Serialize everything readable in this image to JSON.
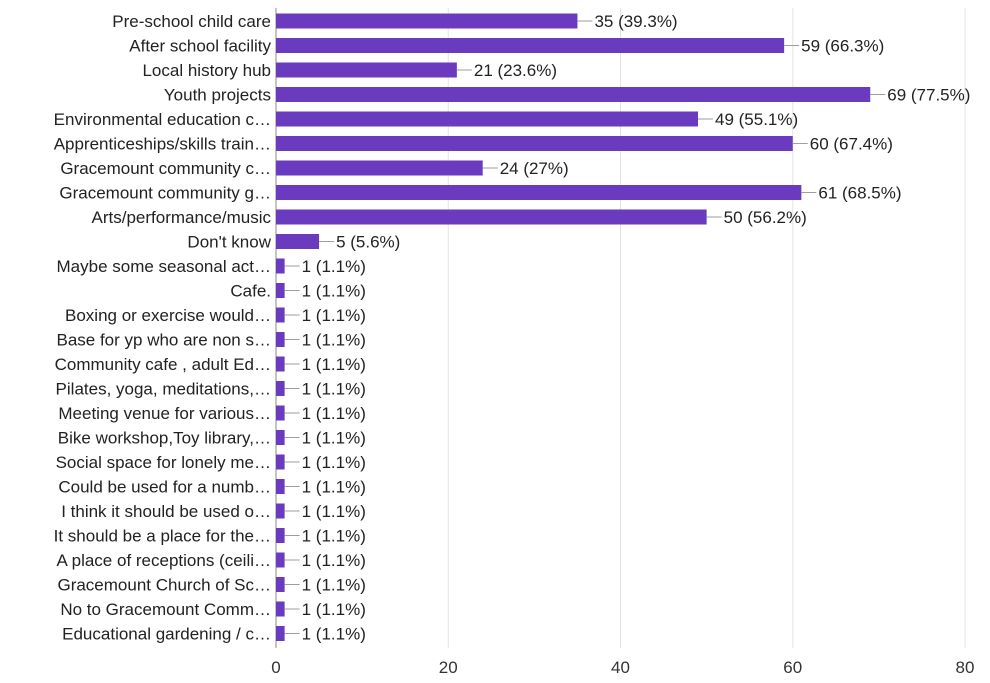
{
  "colors": {
    "bar": "#6a3bbf",
    "grid": "#e3e3e3",
    "axis": "#9e9e9e",
    "leader": "#9e9e9e",
    "text": "#222222"
  },
  "chart_data": {
    "type": "bar",
    "orientation": "horizontal",
    "title": "",
    "xlabel": "",
    "ylabel": "",
    "xlim": [
      0,
      80
    ],
    "xticks": [
      0,
      20,
      40,
      60,
      80
    ],
    "grid": true,
    "categories": [
      "Pre-school child care",
      "After school facility",
      "Local history hub",
      "Youth projects",
      "Environmental education c…",
      "Apprenticeships/skills train…",
      "Gracemount community c…",
      "Gracemount community g…",
      "Arts/performance/music",
      "Don't know",
      "Maybe some seasonal act…",
      "Cafe.",
      "Boxing or exercise would…",
      "Base for yp who are non s…",
      "Community cafe , adult Ed…",
      "Pilates, yoga, meditations,…",
      "Meeting venue for various…",
      "Bike workshop,Toy library,…",
      "Social space for lonely me…",
      "Could be used for a numb…",
      "I think it should be used o…",
      "It should be a place for the…",
      "A place of receptions (ceili…",
      "Gracemount Church of Sc…",
      "No to Gracemount Comm…",
      "Educational gardening / c…"
    ],
    "values": [
      35,
      59,
      21,
      69,
      49,
      60,
      24,
      61,
      50,
      5,
      1,
      1,
      1,
      1,
      1,
      1,
      1,
      1,
      1,
      1,
      1,
      1,
      1,
      1,
      1,
      1
    ],
    "value_labels": [
      "35 (39.3%)",
      "59 (66.3%)",
      "21 (23.6%)",
      "69 (77.5%)",
      "49 (55.1%)",
      "60 (67.4%)",
      "24 (27%)",
      "61 (68.5%)",
      "50 (56.2%)",
      "5 (5.6%)",
      "1 (1.1%)",
      "1 (1.1%)",
      "1 (1.1%)",
      "1 (1.1%)",
      "1 (1.1%)",
      "1 (1.1%)",
      "1 (1.1%)",
      "1 (1.1%)",
      "1 (1.1%)",
      "1 (1.1%)",
      "1 (1.1%)",
      "1 (1.1%)",
      "1 (1.1%)",
      "1 (1.1%)",
      "1 (1.1%)",
      "1 (1.1%)"
    ]
  }
}
